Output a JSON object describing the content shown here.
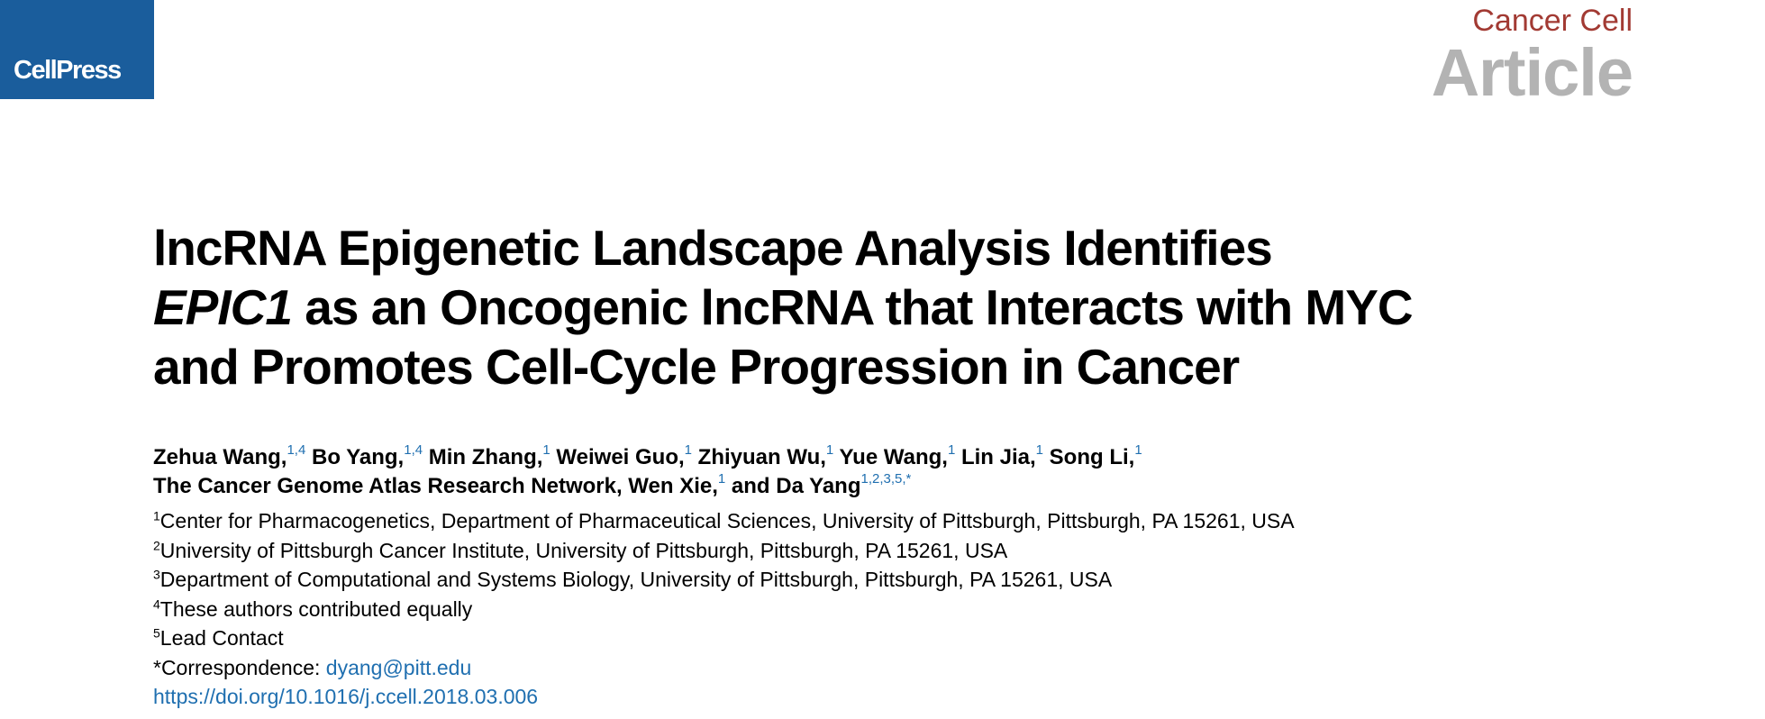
{
  "header": {
    "publisher_logo": "CellPress",
    "journal": "Cancer Cell",
    "article_type": "Article"
  },
  "title": {
    "line1": "lncRNA Epigenetic Landscape Analysis Identifies",
    "line2_italic": "EPIC1",
    "line2_rest": " as an Oncogenic lncRNA that Interacts with MYC",
    "line3": "and Promotes Cell-Cycle Progression in Cancer"
  },
  "authors": [
    {
      "name": "Zehua Wang,",
      "sup": "1,4"
    },
    {
      "name": " Bo Yang,",
      "sup": "1,4"
    },
    {
      "name": " Min Zhang,",
      "sup": "1"
    },
    {
      "name": " Weiwei Guo,",
      "sup": "1"
    },
    {
      "name": " Zhiyuan Wu,",
      "sup": "1"
    },
    {
      "name": " Yue Wang,",
      "sup": "1"
    },
    {
      "name": " Lin Jia,",
      "sup": "1"
    },
    {
      "name": " Song Li,",
      "sup": "1"
    },
    {
      "name": "The Cancer Genome Atlas Research Network, Wen Xie,",
      "sup": "1"
    },
    {
      "name": " and Da Yang",
      "sup": "1,2,3,5,*"
    }
  ],
  "affiliations": [
    {
      "num": "1",
      "text": "Center for Pharmacogenetics, Department of Pharmaceutical Sciences, University of Pittsburgh, Pittsburgh, PA 15261, USA"
    },
    {
      "num": "2",
      "text": "University of Pittsburgh Cancer Institute, University of Pittsburgh, Pittsburgh, PA 15261, USA"
    },
    {
      "num": "3",
      "text": "Department of Computational and Systems Biology, University of Pittsburgh, Pittsburgh, PA 15261, USA"
    },
    {
      "num": "4",
      "text": "These authors contributed equally"
    },
    {
      "num": "5",
      "text": "Lead Contact"
    }
  ],
  "correspondence": {
    "label": "*Correspondence: ",
    "email": "dyang@pitt.edu"
  },
  "doi": "https://doi.org/10.1016/j.ccell.2018.03.006",
  "colors": {
    "logo_bg": "#1a5d9c",
    "journal_name": "#a23a33",
    "article_type": "#b3b3b3",
    "link_blue": "#1f6fb0"
  }
}
